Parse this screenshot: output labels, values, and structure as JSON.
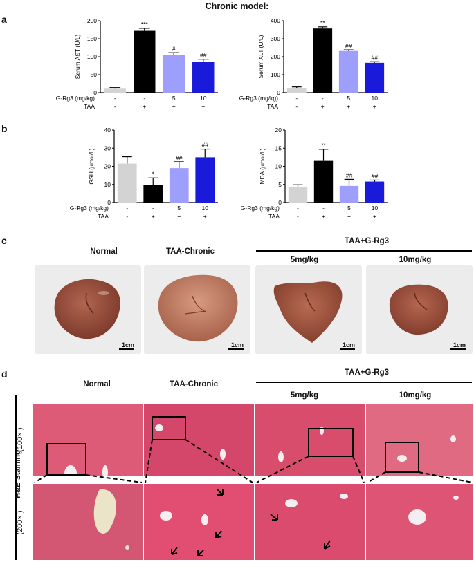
{
  "figure_title": "Chronic model:",
  "panels": {
    "a": "a",
    "b": "b",
    "c": "c",
    "d": "d"
  },
  "row_labels": {
    "dose": "G-Rg3 (mg/kg)",
    "taa": "TAA"
  },
  "dose_values": [
    "-",
    "-",
    "5",
    "10"
  ],
  "taa_values": [
    "-",
    "+",
    "+",
    "+"
  ],
  "colors": {
    "normal": "#d3d3d3",
    "taa": "#000000",
    "low": "#9e9efc",
    "high": "#1a1adb",
    "liver": "#9a4a3a",
    "stain": "#d9546f"
  },
  "chart_data": [
    {
      "type": "bar",
      "id": "ast",
      "ylabel": "Serum AST (U/L)",
      "ylim": [
        0,
        200
      ],
      "yticks": [
        0,
        50,
        100,
        150,
        200
      ],
      "values": [
        11,
        172,
        104,
        86
      ],
      "errors": [
        3,
        7,
        7,
        7
      ],
      "annotations": [
        "",
        "***",
        "#",
        "##"
      ]
    },
    {
      "type": "bar",
      "id": "alt",
      "ylabel": "Serum ALT (U/L)",
      "ylim": [
        0,
        400
      ],
      "yticks": [
        0,
        100,
        200,
        300,
        400
      ],
      "values": [
        26,
        357,
        232,
        166
      ],
      "errors": [
        6,
        9,
        6,
        6
      ],
      "annotations": [
        "",
        "**",
        "##",
        "##"
      ]
    },
    {
      "type": "bar",
      "id": "gsh",
      "ylabel": "GSH (μmol/L)",
      "ylim": [
        0,
        40
      ],
      "yticks": [
        0,
        10,
        20,
        30,
        40
      ],
      "values": [
        21.5,
        9.8,
        19,
        25
      ],
      "errors": [
        3.8,
        3.8,
        3.5,
        4.5
      ],
      "annotations": [
        "",
        "*",
        "##",
        "##"
      ]
    },
    {
      "type": "bar",
      "id": "mda",
      "ylabel": "MDA (μmol/L)",
      "ylim": [
        0,
        20
      ],
      "yticks": [
        0,
        5,
        10,
        15,
        20
      ],
      "values": [
        4.3,
        11.5,
        4.6,
        5.8
      ],
      "errors": [
        0.6,
        3.2,
        1.8,
        0.4
      ],
      "annotations": [
        "",
        "**",
        "##",
        "##"
      ]
    }
  ],
  "section_c": {
    "headers": [
      "Normal",
      "TAA-Chronic",
      "5mg/kg",
      "10mg/kg"
    ],
    "group_header": "TAA+G-Rg3",
    "scale_bar": "1cm"
  },
  "section_d": {
    "headers": [
      "Normal",
      "TAA-Chronic",
      "5mg/kg",
      "10mg/kg"
    ],
    "group_header": "TAA+G-Rg3",
    "stain_label": "H&E  Staining",
    "mag_top": "(100× )",
    "mag_bottom": "(200× )"
  }
}
